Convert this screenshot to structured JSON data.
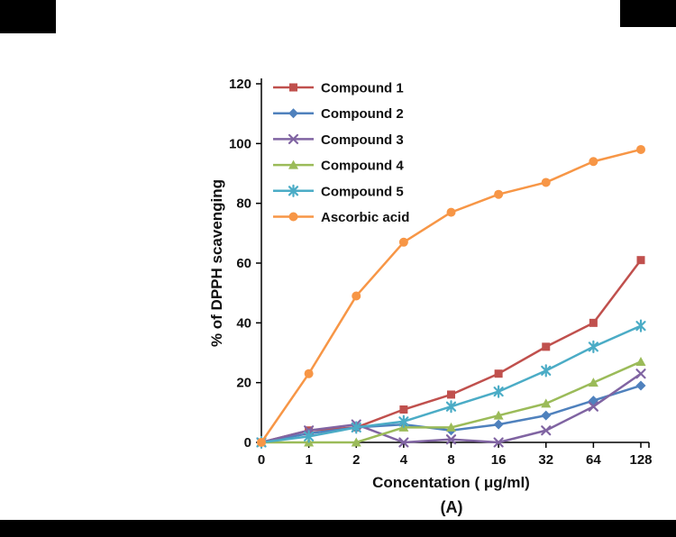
{
  "figure": {
    "caption": "(A)"
  },
  "chart_data": {
    "type": "line",
    "title": "",
    "xlabel": "Concentation ( μg/ml)",
    "ylabel": "% of DPPH scavenging",
    "categories": [
      "0",
      "1",
      "2",
      "4",
      "8",
      "16",
      "32",
      "64",
      "128"
    ],
    "ylim": [
      0,
      120
    ],
    "yticks": [
      0,
      20,
      40,
      60,
      80,
      100,
      120
    ],
    "grid": false,
    "legend_position": "top-left-inside",
    "series": [
      {
        "name": "Compound 1",
        "color": "#C0504D",
        "marker": "square",
        "values": [
          0,
          4,
          5,
          11,
          16,
          23,
          32,
          40,
          61
        ]
      },
      {
        "name": "Compound 2",
        "color": "#4F81BD",
        "marker": "diamond",
        "values": [
          0,
          3,
          5,
          6,
          4,
          6,
          9,
          14,
          19
        ]
      },
      {
        "name": "Compound 3",
        "color": "#8064A2",
        "marker": "x",
        "values": [
          0,
          4,
          6,
          0,
          1,
          0,
          4,
          12,
          23
        ]
      },
      {
        "name": "Compound 4",
        "color": "#9BBB59",
        "marker": "triangle",
        "values": [
          0,
          0,
          0,
          5,
          5,
          9,
          13,
          20,
          27
        ]
      },
      {
        "name": "Compound 5",
        "color": "#4BACC6",
        "marker": "star",
        "values": [
          0,
          2,
          5,
          7,
          12,
          17,
          24,
          32,
          39
        ]
      },
      {
        "name": "Ascorbic acid",
        "color": "#F79646",
        "marker": "circle",
        "values": [
          0,
          23,
          49,
          67,
          77,
          83,
          87,
          94,
          98
        ]
      }
    ]
  }
}
